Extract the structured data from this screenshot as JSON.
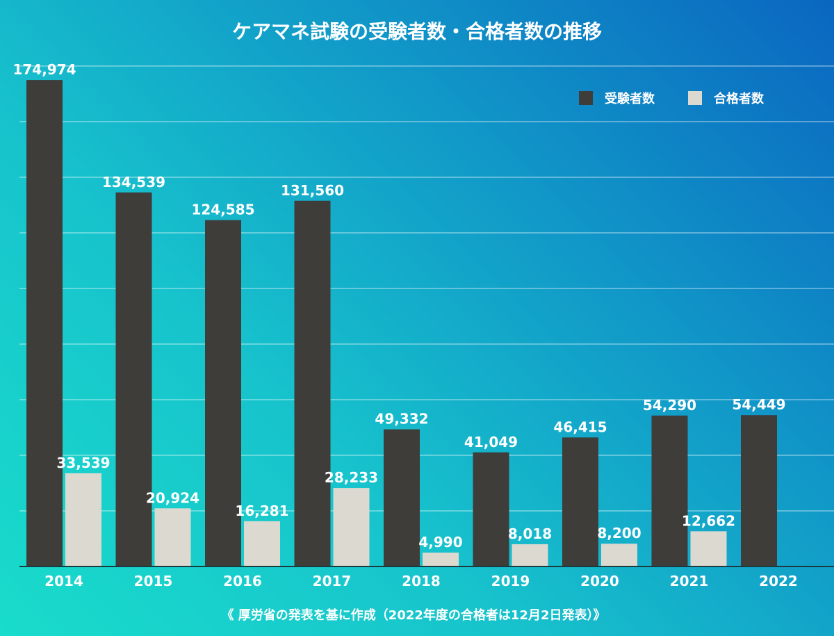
{
  "chart_data": {
    "type": "bar",
    "title": "ケアマネ試験の受験者数・合格者数の推移",
    "categories": [
      "2014",
      "2015",
      "2016",
      "2017",
      "2018",
      "2019",
      "2020",
      "2021",
      "2022"
    ],
    "series": [
      {
        "name": "受験者数",
        "color": "#3e3d3a",
        "values": [
          174974,
          134539,
          124585,
          131560,
          49332,
          41049,
          46415,
          54290,
          54449
        ],
        "labels": [
          "174,974",
          "134,539",
          "124,585",
          "131,560",
          "49,332",
          "41,049",
          "46,415",
          "54,290",
          "54,449"
        ]
      },
      {
        "name": "合格者数",
        "color": "#dcd9d0",
        "values": [
          33539,
          20924,
          16281,
          28233,
          4990,
          8018,
          8200,
          12662,
          null
        ],
        "labels": [
          "33,539",
          "20,924",
          "16,281",
          "28,233",
          "4,990",
          "8,018",
          "8,200",
          "12,662",
          null
        ]
      }
    ],
    "ylim": [
      0,
      180000
    ],
    "grid_step": 20000,
    "grid": true,
    "legend": "top-right",
    "note": "《 厚労省の発表を基に作成（2022年度の合格者は12月2日発表）》"
  }
}
